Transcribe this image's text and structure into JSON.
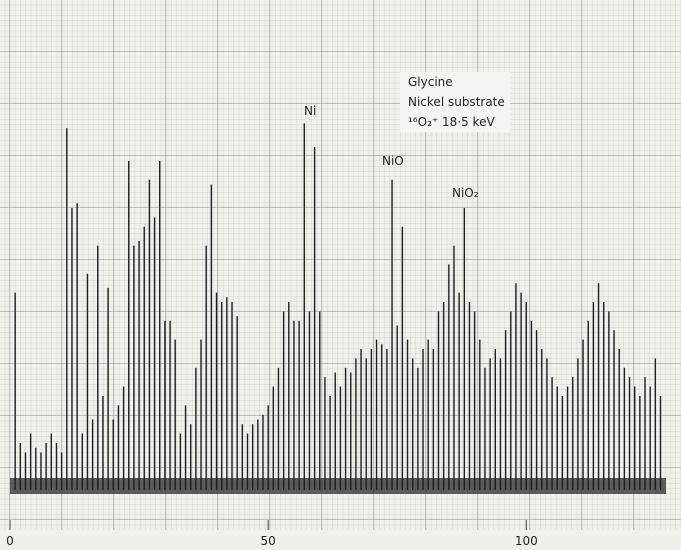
{
  "chart_data": {
    "type": "spectrum",
    "annotations": [
      "Glycine",
      "Nickel substrate",
      "¹⁶O₂⁺  18·5 keV",
      "Ni",
      "NiO",
      "NiO₂"
    ],
    "x": [
      1,
      2,
      3,
      4,
      5,
      6,
      7,
      8,
      9,
      10,
      11,
      12,
      13,
      14,
      15,
      16,
      17,
      18,
      19,
      20,
      21,
      22,
      23,
      24,
      25,
      26,
      27,
      28,
      29,
      30,
      31,
      32,
      33,
      34,
      35,
      36,
      37,
      38,
      39,
      40,
      41,
      42,
      43,
      44,
      45,
      46,
      47,
      48,
      49,
      50,
      51,
      52,
      53,
      54,
      55,
      56,
      57,
      58,
      59,
      60,
      61,
      62,
      63,
      64,
      65,
      66,
      67,
      68,
      69,
      70,
      71,
      72,
      73,
      74,
      75,
      76,
      77,
      78,
      79,
      80,
      81,
      82,
      83,
      84,
      85,
      86,
      87,
      88,
      89,
      90,
      91,
      92,
      93,
      94,
      95,
      96,
      97,
      98,
      99,
      100,
      101,
      102,
      103,
      104,
      105,
      106,
      107,
      108,
      109,
      110,
      111,
      112,
      113,
      114,
      115,
      116,
      117,
      118,
      119,
      120,
      121,
      122,
      123,
      124,
      125,
      126
    ],
    "values": [
      42,
      10,
      8,
      12,
      9,
      8,
      10,
      12,
      10,
      8,
      77,
      60,
      61,
      12,
      46,
      15,
      52,
      20,
      43,
      15,
      18,
      22,
      70,
      52,
      53,
      56,
      66,
      58,
      70,
      36,
      36,
      32,
      12,
      18,
      14,
      26,
      32,
      52,
      65,
      42,
      40,
      41,
      40,
      37,
      14,
      12,
      14,
      15,
      16,
      18,
      22,
      26,
      38,
      40,
      36,
      36,
      78,
      38,
      73,
      38,
      24,
      20,
      25,
      22,
      26,
      25,
      28,
      30,
      28,
      30,
      32,
      31,
      30,
      66,
      35,
      56,
      32,
      28,
      26,
      30,
      32,
      30,
      38,
      40,
      48,
      52,
      42,
      60,
      40,
      38,
      32,
      26,
      28,
      30,
      28,
      34,
      38,
      44,
      42,
      40,
      36,
      34,
      30,
      28,
      24,
      22,
      20,
      22,
      24,
      28,
      32,
      36,
      40,
      44,
      40,
      38,
      34,
      30,
      26,
      24,
      22,
      20,
      24,
      22,
      28,
      20
    ],
    "color": "#1e1e1e",
    "xlim": [
      0,
      129
    ],
    "xticks": [
      0,
      50,
      100
    ],
    "ylim": [
      0,
      100
    ]
  }
}
